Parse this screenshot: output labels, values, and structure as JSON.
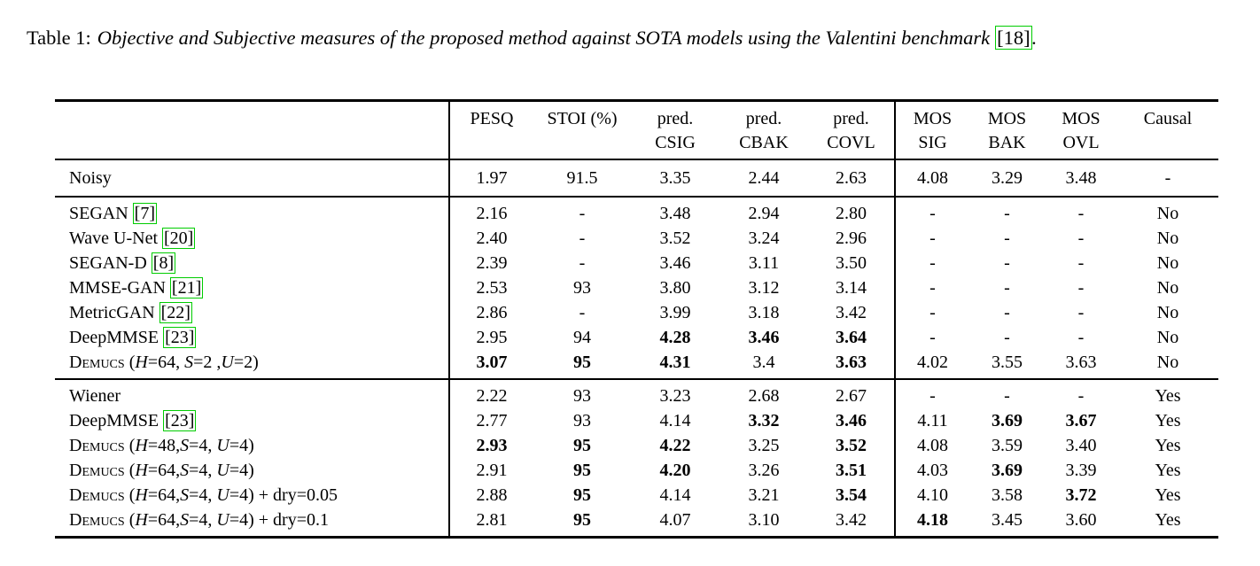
{
  "caption": {
    "label": "Table 1:",
    "body": "Objective and Subjective measures of the proposed method against SOTA models using the Valentini benchmark",
    "citation": "[18]",
    "suffix": "."
  },
  "colors": {
    "citation_border": "#00cc00",
    "text": "#000000",
    "rule": "#000000",
    "background": "#ffffff"
  },
  "table": {
    "columns": [
      {
        "id": "model",
        "line1": "",
        "line2": ""
      },
      {
        "id": "pesq",
        "line1": "PESQ",
        "line2": ""
      },
      {
        "id": "stoi",
        "line1": "STOI (%)",
        "line2": ""
      },
      {
        "id": "csig",
        "line1": "pred.",
        "line2": "CSIG"
      },
      {
        "id": "cbak",
        "line1": "pred.",
        "line2": "CBAK"
      },
      {
        "id": "covl",
        "line1": "pred.",
        "line2": "COVL"
      },
      {
        "id": "mos-sig",
        "line1": "MOS",
        "line2": "SIG"
      },
      {
        "id": "mos-bak",
        "line1": "MOS",
        "line2": "BAK"
      },
      {
        "id": "mos-ovl",
        "line1": "MOS",
        "line2": "OVL"
      },
      {
        "id": "causal",
        "line1": "Causal",
        "line2": ""
      }
    ],
    "groups": [
      {
        "rows": [
          {
            "name": [
              {
                "k": "t",
                "t": "Noisy"
              }
            ],
            "cells": [
              {
                "v": "1.97"
              },
              {
                "v": "91.5"
              },
              {
                "v": "3.35"
              },
              {
                "v": "2.44"
              },
              {
                "v": "2.63"
              },
              {
                "v": "4.08"
              },
              {
                "v": "3.29"
              },
              {
                "v": "3.48"
              },
              {
                "v": "-"
              }
            ]
          }
        ]
      },
      {
        "rows": [
          {
            "name": [
              {
                "k": "t",
                "t": "SEGAN "
              },
              {
                "k": "c",
                "t": "[7]"
              }
            ],
            "cells": [
              {
                "v": "2.16"
              },
              {
                "v": "-"
              },
              {
                "v": "3.48"
              },
              {
                "v": "2.94"
              },
              {
                "v": "2.80"
              },
              {
                "v": "-"
              },
              {
                "v": "-"
              },
              {
                "v": "-"
              },
              {
                "v": "No"
              }
            ]
          },
          {
            "name": [
              {
                "k": "t",
                "t": "Wave U-Net "
              },
              {
                "k": "c",
                "t": "[20]"
              }
            ],
            "cells": [
              {
                "v": "2.40"
              },
              {
                "v": "-"
              },
              {
                "v": "3.52"
              },
              {
                "v": "3.24"
              },
              {
                "v": "2.96"
              },
              {
                "v": "-"
              },
              {
                "v": "-"
              },
              {
                "v": "-"
              },
              {
                "v": "No"
              }
            ]
          },
          {
            "name": [
              {
                "k": "t",
                "t": "SEGAN-D "
              },
              {
                "k": "c",
                "t": "[8]"
              }
            ],
            "cells": [
              {
                "v": "2.39"
              },
              {
                "v": "-"
              },
              {
                "v": "3.46"
              },
              {
                "v": "3.11"
              },
              {
                "v": "3.50"
              },
              {
                "v": "-"
              },
              {
                "v": "-"
              },
              {
                "v": "-"
              },
              {
                "v": "No"
              }
            ]
          },
          {
            "name": [
              {
                "k": "t",
                "t": "MMSE-GAN "
              },
              {
                "k": "c",
                "t": "[21]"
              }
            ],
            "cells": [
              {
                "v": "2.53"
              },
              {
                "v": "93"
              },
              {
                "v": "3.80"
              },
              {
                "v": "3.12"
              },
              {
                "v": "3.14"
              },
              {
                "v": "-"
              },
              {
                "v": "-"
              },
              {
                "v": "-"
              },
              {
                "v": "No"
              }
            ]
          },
          {
            "name": [
              {
                "k": "t",
                "t": "MetricGAN "
              },
              {
                "k": "c",
                "t": "[22]"
              }
            ],
            "cells": [
              {
                "v": "2.86"
              },
              {
                "v": "-"
              },
              {
                "v": "3.99"
              },
              {
                "v": "3.18"
              },
              {
                "v": "3.42"
              },
              {
                "v": "-"
              },
              {
                "v": "-"
              },
              {
                "v": "-"
              },
              {
                "v": "No"
              }
            ]
          },
          {
            "name": [
              {
                "k": "t",
                "t": "DeepMMSE "
              },
              {
                "k": "c",
                "t": "[23]"
              }
            ],
            "cells": [
              {
                "v": "2.95"
              },
              {
                "v": "94"
              },
              {
                "v": "4.28",
                "b": true
              },
              {
                "v": "3.46",
                "b": true
              },
              {
                "v": "3.64",
                "b": true
              },
              {
                "v": "-"
              },
              {
                "v": "-"
              },
              {
                "v": "-"
              },
              {
                "v": "No"
              }
            ]
          },
          {
            "name": [
              {
                "k": "sc",
                "t": "Demucs"
              },
              {
                "k": "t",
                "t": " ("
              },
              {
                "k": "m",
                "t": "H"
              },
              {
                "k": "t",
                "t": "=64, "
              },
              {
                "k": "m",
                "t": "S"
              },
              {
                "k": "t",
                "t": "=2 ,"
              },
              {
                "k": "m",
                "t": "U"
              },
              {
                "k": "t",
                "t": "=2)"
              }
            ],
            "cells": [
              {
                "v": "3.07",
                "b": true
              },
              {
                "v": "95",
                "b": true
              },
              {
                "v": "4.31",
                "b": true
              },
              {
                "v": "3.4"
              },
              {
                "v": "3.63",
                "b": true
              },
              {
                "v": "4.02"
              },
              {
                "v": "3.55"
              },
              {
                "v": "3.63"
              },
              {
                "v": "No"
              }
            ]
          }
        ]
      },
      {
        "rows": [
          {
            "name": [
              {
                "k": "t",
                "t": "Wiener"
              }
            ],
            "cells": [
              {
                "v": "2.22"
              },
              {
                "v": "93"
              },
              {
                "v": "3.23"
              },
              {
                "v": "2.68"
              },
              {
                "v": "2.67"
              },
              {
                "v": "-"
              },
              {
                "v": "-"
              },
              {
                "v": "-"
              },
              {
                "v": "Yes"
              }
            ]
          },
          {
            "name": [
              {
                "k": "t",
                "t": "DeepMMSE "
              },
              {
                "k": "c",
                "t": "[23]"
              }
            ],
            "cells": [
              {
                "v": "2.77"
              },
              {
                "v": "93"
              },
              {
                "v": "4.14"
              },
              {
                "v": "3.32",
                "b": true
              },
              {
                "v": "3.46",
                "b": true
              },
              {
                "v": "4.11"
              },
              {
                "v": "3.69",
                "b": true
              },
              {
                "v": "3.67",
                "b": true
              },
              {
                "v": "Yes"
              }
            ]
          },
          {
            "name": [
              {
                "k": "sc",
                "t": "Demucs"
              },
              {
                "k": "t",
                "t": " ("
              },
              {
                "k": "m",
                "t": "H"
              },
              {
                "k": "t",
                "t": "=48,"
              },
              {
                "k": "m",
                "t": "S"
              },
              {
                "k": "t",
                "t": "=4, "
              },
              {
                "k": "m",
                "t": "U"
              },
              {
                "k": "t",
                "t": "=4)"
              }
            ],
            "cells": [
              {
                "v": "2.93",
                "b": true
              },
              {
                "v": "95",
                "b": true
              },
              {
                "v": "4.22",
                "b": true
              },
              {
                "v": "3.25"
              },
              {
                "v": "3.52",
                "b": true
              },
              {
                "v": "4.08"
              },
              {
                "v": "3.59"
              },
              {
                "v": "3.40"
              },
              {
                "v": "Yes"
              }
            ]
          },
          {
            "name": [
              {
                "k": "sc",
                "t": "Demucs"
              },
              {
                "k": "t",
                "t": " ("
              },
              {
                "k": "m",
                "t": "H"
              },
              {
                "k": "t",
                "t": "=64,"
              },
              {
                "k": "m",
                "t": "S"
              },
              {
                "k": "t",
                "t": "=4, "
              },
              {
                "k": "m",
                "t": "U"
              },
              {
                "k": "t",
                "t": "=4)"
              }
            ],
            "cells": [
              {
                "v": "2.91"
              },
              {
                "v": "95",
                "b": true
              },
              {
                "v": "4.20",
                "b": true
              },
              {
                "v": "3.26"
              },
              {
                "v": "3.51",
                "b": true
              },
              {
                "v": "4.03"
              },
              {
                "v": "3.69",
                "b": true
              },
              {
                "v": "3.39"
              },
              {
                "v": "Yes"
              }
            ]
          },
          {
            "name": [
              {
                "k": "sc",
                "t": "Demucs"
              },
              {
                "k": "t",
                "t": " ("
              },
              {
                "k": "m",
                "t": "H"
              },
              {
                "k": "t",
                "t": "=64,"
              },
              {
                "k": "m",
                "t": "S"
              },
              {
                "k": "t",
                "t": "=4, "
              },
              {
                "k": "m",
                "t": "U"
              },
              {
                "k": "t",
                "t": "=4) + dry=0.05"
              }
            ],
            "cells": [
              {
                "v": "2.88"
              },
              {
                "v": "95",
                "b": true
              },
              {
                "v": "4.14"
              },
              {
                "v": "3.21"
              },
              {
                "v": "3.54",
                "b": true
              },
              {
                "v": "4.10"
              },
              {
                "v": "3.58"
              },
              {
                "v": "3.72",
                "b": true
              },
              {
                "v": "Yes"
              }
            ]
          },
          {
            "name": [
              {
                "k": "sc",
                "t": "Demucs"
              },
              {
                "k": "t",
                "t": " ("
              },
              {
                "k": "m",
                "t": "H"
              },
              {
                "k": "t",
                "t": "=64,"
              },
              {
                "k": "m",
                "t": "S"
              },
              {
                "k": "t",
                "t": "=4, "
              },
              {
                "k": "m",
                "t": "U"
              },
              {
                "k": "t",
                "t": "=4) + dry=0.1"
              }
            ],
            "cells": [
              {
                "v": "2.81"
              },
              {
                "v": "95",
                "b": true
              },
              {
                "v": "4.07"
              },
              {
                "v": "3.10"
              },
              {
                "v": "3.42"
              },
              {
                "v": "4.18",
                "b": true
              },
              {
                "v": "3.45"
              },
              {
                "v": "3.60"
              },
              {
                "v": "Yes"
              }
            ]
          }
        ]
      }
    ]
  }
}
